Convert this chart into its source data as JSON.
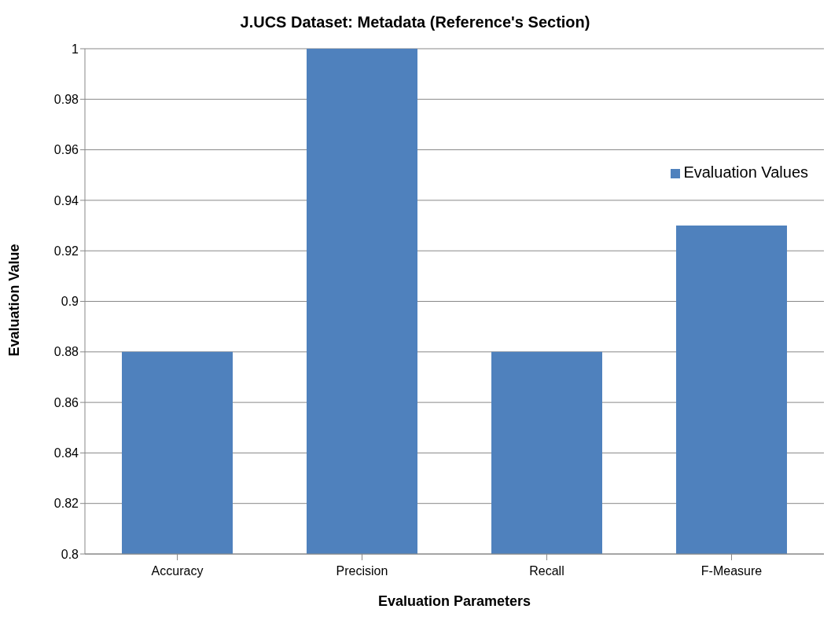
{
  "chart_data": {
    "type": "bar",
    "title": "J.UCS Dataset: Metadata (Reference's Section)",
    "xlabel": "Evaluation Parameters",
    "ylabel": "Evaluation Value",
    "categories": [
      "Accuracy",
      "Precision",
      "Recall",
      "F-Measure"
    ],
    "series": [
      {
        "name": "Evaluation Values",
        "color": "#4f81bd",
        "values": [
          0.88,
          1,
          0.88,
          0.93
        ]
      }
    ],
    "ylim": [
      0.8,
      1
    ],
    "yticks": [
      0.8,
      0.82,
      0.84,
      0.86,
      0.88,
      0.9,
      0.92,
      0.94,
      0.96,
      0.98,
      1
    ],
    "grid": "y",
    "legend": "right"
  }
}
